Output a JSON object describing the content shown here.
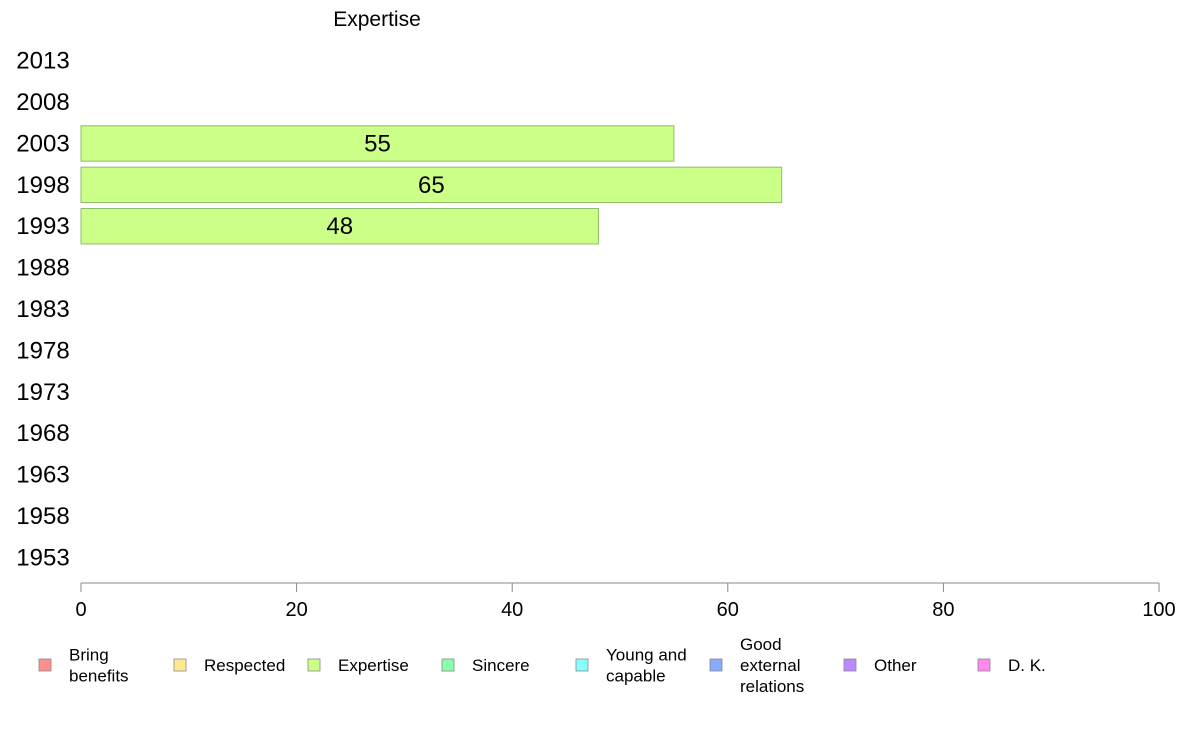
{
  "chart_data": {
    "type": "bar",
    "orientation": "horizontal",
    "title": "Expertise",
    "xlabel": "",
    "ylabel": "",
    "xlim": [
      0,
      100
    ],
    "xticks": [
      0,
      20,
      40,
      60,
      80,
      100
    ],
    "categories": [
      "2013",
      "2008",
      "2003",
      "1998",
      "1993",
      "1988",
      "1983",
      "1978",
      "1973",
      "1968",
      "1963",
      "1958",
      "1953"
    ],
    "series": [
      {
        "name": "Expertise",
        "color": "#ccff88",
        "values": [
          null,
          null,
          55,
          65,
          48,
          null,
          null,
          null,
          null,
          null,
          null,
          null,
          null
        ]
      }
    ],
    "grid": false,
    "legend_position": "bottom",
    "legend": [
      {
        "label": "Bring benefits",
        "lines": [
          "Bring",
          "benefits"
        ],
        "color": "#ff8f8f"
      },
      {
        "label": "Respected",
        "lines": [
          "Respected"
        ],
        "color": "#ffe88f"
      },
      {
        "label": "Expertise",
        "lines": [
          "Expertise"
        ],
        "color": "#ccff88"
      },
      {
        "label": "Sincere",
        "lines": [
          "Sincere"
        ],
        "color": "#88ffaa"
      },
      {
        "label": "Young and capable",
        "lines": [
          "Young and",
          "capable"
        ],
        "color": "#88ffff"
      },
      {
        "label": "Good external relations",
        "lines": [
          "Good",
          "external",
          "relations"
        ],
        "color": "#88aaff"
      },
      {
        "label": "Other",
        "lines": [
          "Other"
        ],
        "color": "#bb88ff"
      },
      {
        "label": "D. K.",
        "lines": [
          "D. K."
        ],
        "color": "#ff88ee"
      }
    ]
  }
}
